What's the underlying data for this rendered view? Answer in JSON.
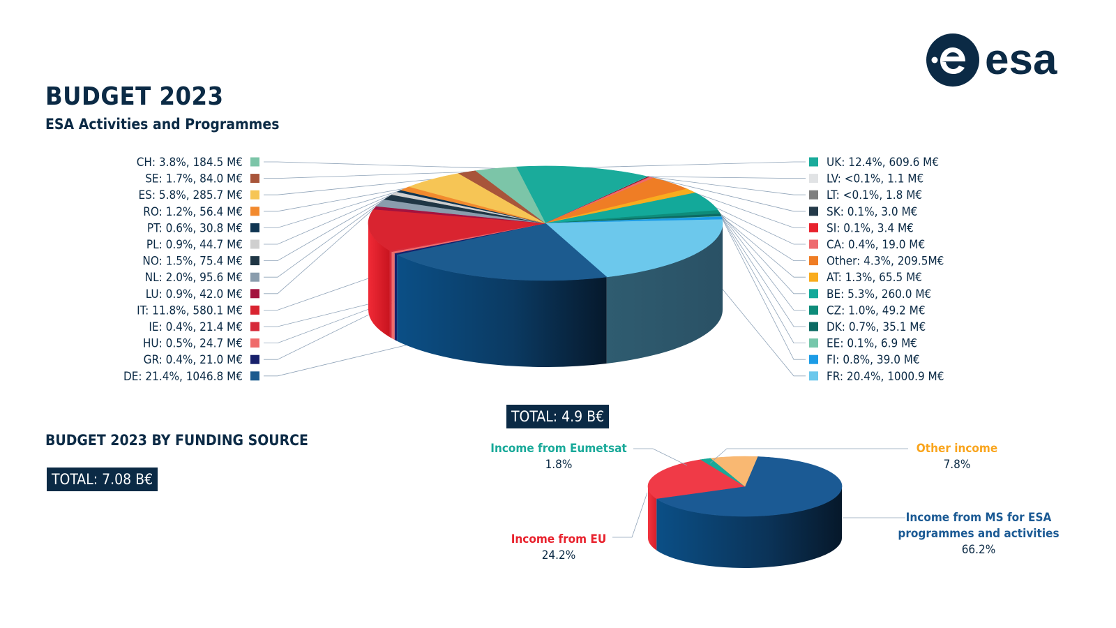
{
  "title": "BUDGET 2023",
  "subtitle": "ESA Activities and Programmes",
  "logo_text": "esa",
  "total_main": "TOTAL: 4.9 B€",
  "funding_title": "BUDGET 2023 BY FUNDING SOURCE",
  "total_funding": "TOTAL: 7.08 B€",
  "colors": {
    "navy": "#0b2a45",
    "leader": "#8fa3b8"
  },
  "chart_data": [
    {
      "type": "pie",
      "title": "ESA Activities and Programmes",
      "unit": "M€",
      "total_label": "TOTAL: 4.9 B€",
      "slices": [
        {
          "name": "UK",
          "label": "UK: 12.4%, 609.6 M€",
          "percent": 12.4,
          "value": 609.6,
          "color": "#1aab9b",
          "side": "right"
        },
        {
          "name": "LV",
          "label": "LV: <0.1%, 1.1 M€",
          "percent": 0.02,
          "value": 1.1,
          "color": "#e1e3e5",
          "side": "right"
        },
        {
          "name": "LT",
          "label": "LT: <0.1%, 1.8 M€",
          "percent": 0.04,
          "value": 1.8,
          "color": "#7f7f7f",
          "side": "right"
        },
        {
          "name": "SK",
          "label": "SK: 0.1%, 3.0 M€",
          "percent": 0.1,
          "value": 3.0,
          "color": "#243a49",
          "side": "right"
        },
        {
          "name": "SI",
          "label": "SI: 0.1%, 3.4 M€",
          "percent": 0.1,
          "value": 3.4,
          "color": "#e8222d",
          "side": "right"
        },
        {
          "name": "CA",
          "label": "CA: 0.4%, 19.0 M€",
          "percent": 0.4,
          "value": 19.0,
          "color": "#ee6b6f",
          "side": "right"
        },
        {
          "name": "Other",
          "label": "Other: 4.3%, 209.5M€",
          "percent": 4.3,
          "value": 209.5,
          "color": "#ef7d25",
          "side": "right"
        },
        {
          "name": "AT",
          "label": "AT: 1.3%, 65.5 M€",
          "percent": 1.3,
          "value": 65.5,
          "color": "#f9ac1e",
          "side": "right"
        },
        {
          "name": "BE",
          "label": "BE: 5.3%, 260.0 M€",
          "percent": 5.3,
          "value": 260.0,
          "color": "#13a99a",
          "side": "right"
        },
        {
          "name": "CZ",
          "label": "CZ: 1.0%, 49.2 M€",
          "percent": 1.0,
          "value": 49.2,
          "color": "#0e8c7a",
          "side": "right"
        },
        {
          "name": "DK",
          "label": "DK: 0.7%, 35.1 M€",
          "percent": 0.7,
          "value": 35.1,
          "color": "#0c6a63",
          "side": "right"
        },
        {
          "name": "EE",
          "label": "EE:  0.1%, 6.9 M€",
          "percent": 0.1,
          "value": 6.9,
          "color": "#76c7ab",
          "side": "right"
        },
        {
          "name": "FI",
          "label": "FI: 0.8%, 39.0 M€",
          "percent": 0.8,
          "value": 39.0,
          "color": "#1c9ce6",
          "side": "right"
        },
        {
          "name": "FR",
          "label": "FR: 20.4%, 1000.9 M€",
          "percent": 20.4,
          "value": 1000.9,
          "color": "#6cc8ec",
          "side": "right"
        },
        {
          "name": "DE",
          "label": "DE: 21.4%, 1046.8 M€",
          "percent": 21.4,
          "value": 1046.8,
          "color": "#1c5b8f",
          "side": "left"
        },
        {
          "name": "GR",
          "label": "GR: 0.4%, 21.0 M€",
          "percent": 0.4,
          "value": 21.0,
          "color": "#17206b",
          "side": "left"
        },
        {
          "name": "HU",
          "label": "HU: 0.5%, 24.7 M€",
          "percent": 0.5,
          "value": 24.7,
          "color": "#ef6b6b",
          "side": "left"
        },
        {
          "name": "IE",
          "label": "IE: 0.4%, 21.4 M€",
          "percent": 0.4,
          "value": 21.4,
          "color": "#d62a3a",
          "side": "left"
        },
        {
          "name": "IT",
          "label": "IT: 11.8%, 580.1 M€",
          "percent": 11.8,
          "value": 580.1,
          "color": "#d92430",
          "side": "left"
        },
        {
          "name": "LU",
          "label": "LU: 0.9%, 42.0 M€",
          "percent": 0.9,
          "value": 42.0,
          "color": "#a3133f",
          "side": "left"
        },
        {
          "name": "NL",
          "label": "NL: 2.0%, 95.6 M€",
          "percent": 2.0,
          "value": 95.6,
          "color": "#8a9dad",
          "side": "left"
        },
        {
          "name": "NO",
          "label": "NO: 1.5%, 75.4 M€",
          "percent": 1.5,
          "value": 75.4,
          "color": "#1f3645",
          "side": "left"
        },
        {
          "name": "PL",
          "label": "PL: 0.9%, 44.7 M€",
          "percent": 0.9,
          "value": 44.7,
          "color": "#cfcfcf",
          "side": "left"
        },
        {
          "name": "PT",
          "label": "PT: 0.6%, 30.8 M€",
          "percent": 0.6,
          "value": 30.8,
          "color": "#0f3552",
          "side": "left"
        },
        {
          "name": "RO",
          "label": "RO: 1.2%, 56.4 M€",
          "percent": 1.2,
          "value": 56.4,
          "color": "#f28a2e",
          "side": "left"
        },
        {
          "name": "ES",
          "label": "ES: 5.8%, 285.7 M€",
          "percent": 5.8,
          "value": 285.7,
          "color": "#f6c555",
          "side": "left"
        },
        {
          "name": "SE",
          "label": "SE: 1.7%, 84.0 M€",
          "percent": 1.7,
          "value": 84.0,
          "color": "#a8553a",
          "side": "left"
        },
        {
          "name": "CH",
          "label": "CH: 3.8%, 184.5 M€",
          "percent": 3.8,
          "value": 184.5,
          "color": "#7cc5a8",
          "side": "left"
        }
      ]
    },
    {
      "type": "pie",
      "title": "BUDGET 2023 BY FUNDING SOURCE",
      "total_label": "TOTAL: 7.08 B€",
      "slices": [
        {
          "name": "Income from MS for ESA programmes and activities",
          "label_lines": [
            "Income from MS for ESA",
            "programmes and activities"
          ],
          "percent_label": "66.2%",
          "percent": 66.2,
          "color": "#1b5a94",
          "label_color": "#1b5a94"
        },
        {
          "name": "Income from EU",
          "label_lines": [
            "Income from EU"
          ],
          "percent_label": "24.2%",
          "percent": 24.2,
          "color": "#f03a47",
          "label_color": "#e8222d"
        },
        {
          "name": "Income from Eumetsat",
          "label_lines": [
            "Income from Eumetsat"
          ],
          "percent_label": "1.8%",
          "percent": 1.8,
          "color": "#18a999",
          "label_color": "#18a999"
        },
        {
          "name": "Other income",
          "label_lines": [
            "Other income"
          ],
          "percent_label": "7.8%",
          "percent": 7.8,
          "color": "#f9b872",
          "label_color": "#f9a51e"
        }
      ]
    }
  ]
}
